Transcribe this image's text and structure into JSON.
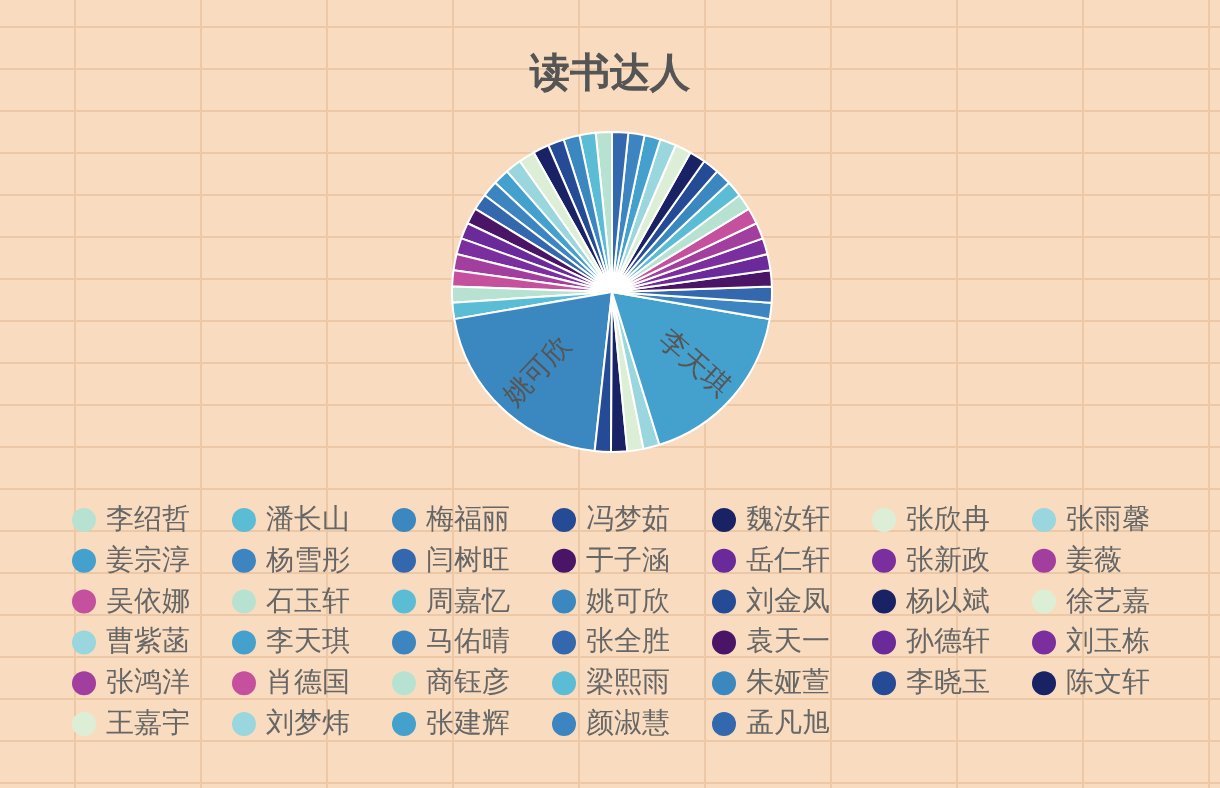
{
  "chart_data": {
    "type": "pie",
    "title": "读书达人",
    "categories": [
      "李绍哲",
      "潘长山",
      "梅福丽",
      "冯梦茹",
      "魏汝轩",
      "张欣冉",
      "张雨馨",
      "姜宗淳",
      "杨雪彤",
      "闫树旺",
      "于子涵",
      "岳仁轩",
      "张新政",
      "姜薇",
      "吴依娜",
      "石玉轩",
      "周嘉忆",
      "姚可欣",
      "刘金凤",
      "杨以斌",
      "徐艺嘉",
      "曹紫菡",
      "李天琪",
      "马佑晴",
      "张全胜",
      "袁天一",
      "孙德轩",
      "刘玉栋",
      "张鸿洋",
      "肖德国",
      "商钰彦",
      "梁熙雨",
      "朱娅萱",
      "李晓玉",
      "陈文轩",
      "王嘉宇",
      "刘梦炜",
      "张建辉",
      "颜淑慧",
      "孟凡旭"
    ],
    "values": [
      1.63,
      1.63,
      1.63,
      1.63,
      1.63,
      1.63,
      1.63,
      1.63,
      1.63,
      1.63,
      1.63,
      1.63,
      1.63,
      1.63,
      1.63,
      1.63,
      1.63,
      20.56,
      1.63,
      1.63,
      1.63,
      1.63,
      17.5,
      1.63,
      1.63,
      1.63,
      1.63,
      1.63,
      1.63,
      1.63,
      1.63,
      1.63,
      1.63,
      1.63,
      1.63,
      1.63,
      1.63,
      1.63,
      1.63,
      1.63
    ],
    "colors": [
      "#b7e2d2",
      "#5bbcd6",
      "#3a88bf",
      "#264b96",
      "#1a2266",
      "#dcefd6",
      "#99d6dd",
      "#44a0cc",
      "#3d85c0",
      "#3468ae",
      "#4a1566",
      "#6a2a9a",
      "#7b2f9e",
      "#a23f9e",
      "#c4509e",
      "#b7e2d2",
      "#5bbcd6",
      "#3a88bf",
      "#264b96",
      "#1a2266",
      "#dcefd6",
      "#99d6dd",
      "#44a0cc",
      "#3d85c0",
      "#3468ae",
      "#4a1566",
      "#6a2a9a",
      "#7b2f9e",
      "#a23f9e",
      "#c4509e",
      "#b7e2d2",
      "#5bbcd6",
      "#3a88bf",
      "#264b96",
      "#1a2266",
      "#dcefd6",
      "#99d6dd",
      "#44a0cc",
      "#3d85c0",
      "#3468ae"
    ],
    "legend": "bottom"
  }
}
